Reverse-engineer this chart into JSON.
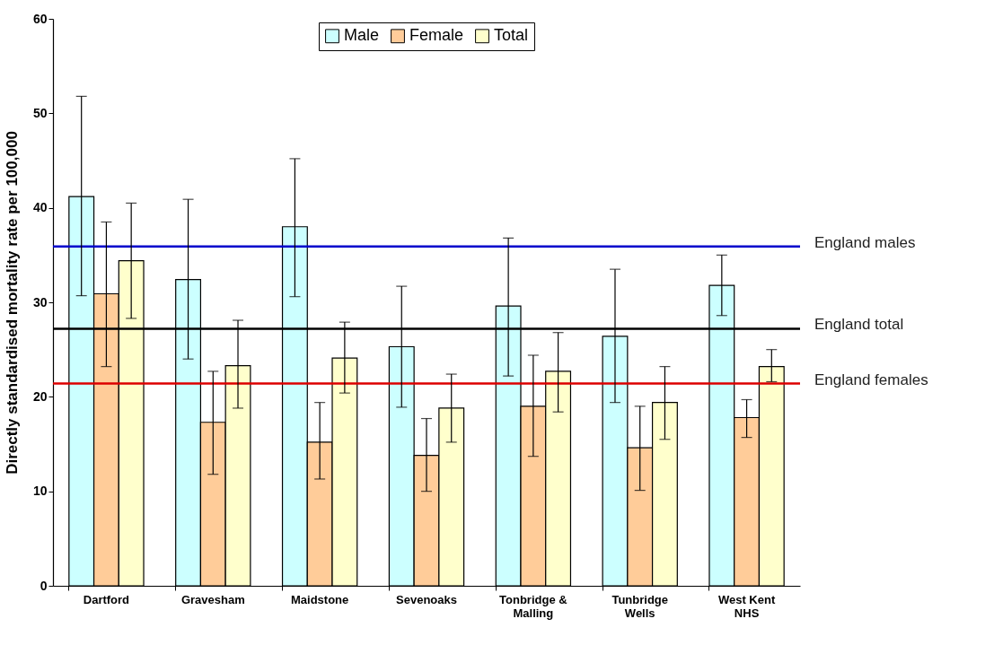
{
  "chart_data": {
    "type": "bar",
    "ylabel": "Directly standardised mortality rate per 100,000",
    "categories": [
      "Dartford",
      "Gravesham",
      "Maidstone",
      "Sevenoaks",
      "Tonbridge &\nMalling",
      "Tunbridge\nWells",
      "West Kent\nNHS"
    ],
    "ylim": [
      0,
      60
    ],
    "yticks": [
      0,
      10,
      20,
      30,
      40,
      50,
      60
    ],
    "grid": false,
    "legend": "top",
    "series": [
      {
        "name": "Male",
        "color": "#ccffff",
        "values": [
          41.2,
          32.4,
          38.0,
          25.3,
          29.6,
          26.4,
          31.8
        ],
        "errors": [
          [
            30.7,
            51.8
          ],
          [
            24.0,
            40.9
          ],
          [
            30.6,
            45.2
          ],
          [
            18.9,
            31.7
          ],
          [
            22.2,
            36.8
          ],
          [
            19.4,
            33.5
          ],
          [
            28.6,
            35.0
          ]
        ]
      },
      {
        "name": "Female",
        "color": "#ffcc99",
        "values": [
          30.9,
          17.3,
          15.2,
          13.8,
          19.0,
          14.6,
          17.8
        ],
        "errors": [
          [
            23.2,
            38.5
          ],
          [
            11.8,
            22.7
          ],
          [
            11.3,
            19.4
          ],
          [
            10.0,
            17.7
          ],
          [
            13.7,
            24.4
          ],
          [
            10.1,
            19.0
          ],
          [
            15.7,
            19.7
          ]
        ]
      },
      {
        "name": "Total",
        "color": "#ffffcc",
        "values": [
          34.4,
          23.3,
          24.1,
          18.8,
          22.7,
          19.4,
          23.2
        ],
        "errors": [
          [
            28.3,
            40.5
          ],
          [
            18.8,
            28.1
          ],
          [
            20.4,
            27.9
          ],
          [
            15.2,
            22.4
          ],
          [
            18.4,
            26.8
          ],
          [
            15.5,
            23.2
          ],
          [
            21.6,
            25.0
          ]
        ]
      }
    ],
    "ref_lines": [
      {
        "axis": "y",
        "value": 35.9,
        "label": "England males",
        "color": "#0000cc"
      },
      {
        "axis": "y",
        "value": 27.2,
        "label": "England total",
        "color": "#000000"
      },
      {
        "axis": "y",
        "value": 21.4,
        "label": "England females",
        "color": "#dd0000"
      }
    ]
  }
}
